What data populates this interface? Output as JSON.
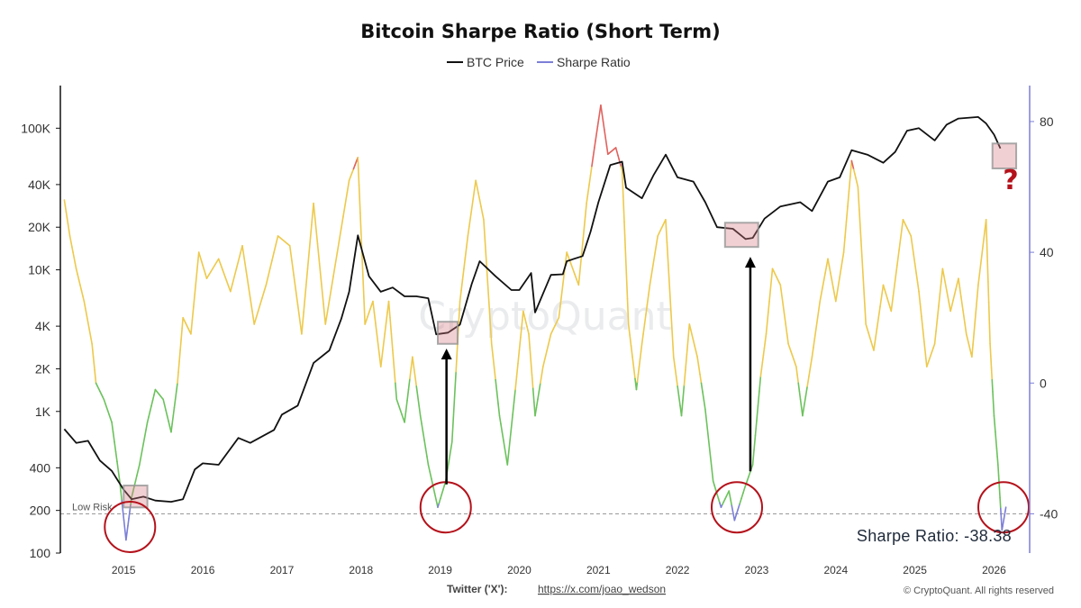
{
  "chart_data": {
    "type": "line",
    "title": "Bitcoin Sharpe Ratio (Short Term)",
    "legend": {
      "placement": "top-center",
      "items": [
        {
          "name": "BTC Price",
          "color": "#111111"
        },
        {
          "name": "Sharpe Ratio",
          "color": "#7b7fd6"
        }
      ]
    },
    "y_left": {
      "scale": "log",
      "range": [
        100,
        200000
      ],
      "ticks": [
        {
          "value": 100,
          "label": "100"
        },
        {
          "value": 200,
          "label": "200"
        },
        {
          "value": 400,
          "label": "400"
        },
        {
          "value": 1000,
          "label": "1K"
        },
        {
          "value": 2000,
          "label": "2K"
        },
        {
          "value": 4000,
          "label": "4K"
        },
        {
          "value": 10000,
          "label": "10K"
        },
        {
          "value": 20000,
          "label": "20K"
        },
        {
          "value": 40000,
          "label": "40K"
        },
        {
          "value": 100000,
          "label": "100K"
        }
      ]
    },
    "y_right": {
      "scale": "linear",
      "range": [
        -52,
        91
      ],
      "ticks": [
        {
          "value": 80,
          "label": "80"
        },
        {
          "value": 40,
          "label": "40"
        },
        {
          "value": 0,
          "label": "0"
        },
        {
          "value": -40,
          "label": "-40"
        }
      ]
    },
    "x": {
      "range": [
        2014.2,
        2026.45
      ],
      "ticks": [
        {
          "value": 2015,
          "label": "2015"
        },
        {
          "value": 2016,
          "label": "2016"
        },
        {
          "value": 2017,
          "label": "2017"
        },
        {
          "value": 2018,
          "label": "2018"
        },
        {
          "value": 2019,
          "label": "2019"
        },
        {
          "value": 2020,
          "label": "2020"
        },
        {
          "value": 2021,
          "label": "2021"
        },
        {
          "value": 2022,
          "label": "2022"
        },
        {
          "value": 2023,
          "label": "2023"
        },
        {
          "value": 2024,
          "label": "2024"
        },
        {
          "value": 2025,
          "label": "2025"
        },
        {
          "value": 2026,
          "label": "2026"
        }
      ]
    },
    "grid": false,
    "btc_price": [
      [
        2014.25,
        750
      ],
      [
        2014.4,
        600
      ],
      [
        2014.55,
        620
      ],
      [
        2014.7,
        450
      ],
      [
        2014.85,
        380
      ],
      [
        2015.0,
        280
      ],
      [
        2015.1,
        240
      ],
      [
        2015.25,
        250
      ],
      [
        2015.4,
        235
      ],
      [
        2015.6,
        230
      ],
      [
        2015.75,
        240
      ],
      [
        2015.9,
        390
      ],
      [
        2016.0,
        430
      ],
      [
        2016.2,
        420
      ],
      [
        2016.45,
        650
      ],
      [
        2016.6,
        600
      ],
      [
        2016.9,
        740
      ],
      [
        2017.0,
        950
      ],
      [
        2017.2,
        1100
      ],
      [
        2017.4,
        2200
      ],
      [
        2017.6,
        2700
      ],
      [
        2017.75,
        4500
      ],
      [
        2017.85,
        7000
      ],
      [
        2017.96,
        17500
      ],
      [
        2018.1,
        9000
      ],
      [
        2018.25,
        7000
      ],
      [
        2018.4,
        7500
      ],
      [
        2018.55,
        6500
      ],
      [
        2018.7,
        6500
      ],
      [
        2018.85,
        6300
      ],
      [
        2018.95,
        3500
      ],
      [
        2019.1,
        3600
      ],
      [
        2019.25,
        4100
      ],
      [
        2019.4,
        8000
      ],
      [
        2019.5,
        11500
      ],
      [
        2019.7,
        9000
      ],
      [
        2019.9,
        7200
      ],
      [
        2020.0,
        7200
      ],
      [
        2020.15,
        9500
      ],
      [
        2020.2,
        5000
      ],
      [
        2020.4,
        9200
      ],
      [
        2020.55,
        9300
      ],
      [
        2020.6,
        11500
      ],
      [
        2020.8,
        12500
      ],
      [
        2020.9,
        18500
      ],
      [
        2021.0,
        30000
      ],
      [
        2021.15,
        55000
      ],
      [
        2021.3,
        58000
      ],
      [
        2021.35,
        38000
      ],
      [
        2021.55,
        32000
      ],
      [
        2021.7,
        47000
      ],
      [
        2021.85,
        65000
      ],
      [
        2022.0,
        45000
      ],
      [
        2022.2,
        42000
      ],
      [
        2022.35,
        30000
      ],
      [
        2022.5,
        20000
      ],
      [
        2022.7,
        19500
      ],
      [
        2022.86,
        16500
      ],
      [
        2022.95,
        16800
      ],
      [
        2023.1,
        23000
      ],
      [
        2023.3,
        28000
      ],
      [
        2023.55,
        30000
      ],
      [
        2023.7,
        26000
      ],
      [
        2023.9,
        42000
      ],
      [
        2024.05,
        45000
      ],
      [
        2024.2,
        70000
      ],
      [
        2024.4,
        65000
      ],
      [
        2024.6,
        57000
      ],
      [
        2024.75,
        68000
      ],
      [
        2024.9,
        96000
      ],
      [
        2025.05,
        100000
      ],
      [
        2025.25,
        82000
      ],
      [
        2025.4,
        106000
      ],
      [
        2025.55,
        117000
      ],
      [
        2025.8,
        120000
      ],
      [
        2025.9,
        108000
      ],
      [
        2026.0,
        90000
      ],
      [
        2026.08,
        72000
      ]
    ],
    "sharpe_ratio": [
      [
        2014.25,
        56
      ],
      [
        2014.32,
        45
      ],
      [
        2014.4,
        35
      ],
      [
        2014.5,
        25
      ],
      [
        2014.6,
        12
      ],
      [
        2014.65,
        0
      ],
      [
        2014.75,
        -5
      ],
      [
        2014.85,
        -12
      ],
      [
        2014.95,
        -30
      ],
      [
        2015.03,
        -48
      ],
      [
        2015.1,
        -35
      ],
      [
        2015.2,
        -25
      ],
      [
        2015.3,
        -12
      ],
      [
        2015.4,
        -2
      ],
      [
        2015.5,
        -5
      ],
      [
        2015.6,
        -15
      ],
      [
        2015.68,
        0
      ],
      [
        2015.75,
        20
      ],
      [
        2015.85,
        15
      ],
      [
        2015.95,
        40
      ],
      [
        2016.05,
        32
      ],
      [
        2016.2,
        38
      ],
      [
        2016.35,
        28
      ],
      [
        2016.5,
        42
      ],
      [
        2016.65,
        18
      ],
      [
        2016.8,
        30
      ],
      [
        2016.95,
        45
      ],
      [
        2017.1,
        42
      ],
      [
        2017.25,
        15
      ],
      [
        2017.4,
        55
      ],
      [
        2017.55,
        18
      ],
      [
        2017.7,
        40
      ],
      [
        2017.85,
        62
      ],
      [
        2017.96,
        69
      ],
      [
        2018.05,
        18
      ],
      [
        2018.15,
        25
      ],
      [
        2018.25,
        5
      ],
      [
        2018.35,
        25
      ],
      [
        2018.45,
        -5
      ],
      [
        2018.55,
        -12
      ],
      [
        2018.65,
        8
      ],
      [
        2018.75,
        -10
      ],
      [
        2018.85,
        -25
      ],
      [
        2018.97,
        -38
      ],
      [
        2019.07,
        -30
      ],
      [
        2019.15,
        -18
      ],
      [
        2019.25,
        25
      ],
      [
        2019.35,
        45
      ],
      [
        2019.45,
        62
      ],
      [
        2019.55,
        50
      ],
      [
        2019.65,
        12
      ],
      [
        2019.75,
        -10
      ],
      [
        2019.85,
        -25
      ],
      [
        2019.95,
        -2
      ],
      [
        2020.05,
        22
      ],
      [
        2020.12,
        15
      ],
      [
        2020.2,
        -10
      ],
      [
        2020.3,
        5
      ],
      [
        2020.4,
        15
      ],
      [
        2020.5,
        20
      ],
      [
        2020.6,
        40
      ],
      [
        2020.75,
        30
      ],
      [
        2020.85,
        55
      ],
      [
        2020.95,
        72
      ],
      [
        2021.03,
        85
      ],
      [
        2021.12,
        70
      ],
      [
        2021.22,
        72
      ],
      [
        2021.3,
        65
      ],
      [
        2021.38,
        18
      ],
      [
        2021.48,
        -2
      ],
      [
        2021.55,
        12
      ],
      [
        2021.65,
        30
      ],
      [
        2021.75,
        45
      ],
      [
        2021.85,
        50
      ],
      [
        2021.95,
        8
      ],
      [
        2022.05,
        -10
      ],
      [
        2022.15,
        18
      ],
      [
        2022.25,
        8
      ],
      [
        2022.35,
        -8
      ],
      [
        2022.45,
        -30
      ],
      [
        2022.55,
        -38
      ],
      [
        2022.65,
        -33
      ],
      [
        2022.72,
        -42
      ],
      [
        2022.85,
        -32
      ],
      [
        2022.95,
        -25
      ],
      [
        2023.05,
        2
      ],
      [
        2023.12,
        15
      ],
      [
        2023.2,
        35
      ],
      [
        2023.3,
        30
      ],
      [
        2023.4,
        12
      ],
      [
        2023.5,
        5
      ],
      [
        2023.58,
        -10
      ],
      [
        2023.7,
        8
      ],
      [
        2023.8,
        25
      ],
      [
        2023.9,
        38
      ],
      [
        2024.0,
        25
      ],
      [
        2024.1,
        40
      ],
      [
        2024.2,
        68
      ],
      [
        2024.28,
        60
      ],
      [
        2024.38,
        18
      ],
      [
        2024.48,
        10
      ],
      [
        2024.6,
        30
      ],
      [
        2024.7,
        22
      ],
      [
        2024.85,
        50
      ],
      [
        2024.95,
        45
      ],
      [
        2025.05,
        28
      ],
      [
        2025.15,
        5
      ],
      [
        2025.25,
        12
      ],
      [
        2025.35,
        35
      ],
      [
        2025.45,
        22
      ],
      [
        2025.55,
        32
      ],
      [
        2025.65,
        15
      ],
      [
        2025.72,
        8
      ],
      [
        2025.8,
        30
      ],
      [
        2025.9,
        50
      ],
      [
        2025.95,
        12
      ],
      [
        2026.0,
        -10
      ],
      [
        2026.05,
        -25
      ],
      [
        2026.1,
        -45
      ],
      [
        2026.15,
        -38
      ]
    ],
    "threshold": {
      "label": "Low Risk",
      "value": -40
    },
    "readout": "Sharpe Ratio: -38.38",
    "watermark": "CryptoQuant",
    "annotation_mark": "?"
  },
  "footer": {
    "twitter_label": "Twitter ('X'):",
    "twitter_url": "https://x.com/joao_wedson",
    "copyright": "© CryptoQuant. All rights reserved"
  }
}
